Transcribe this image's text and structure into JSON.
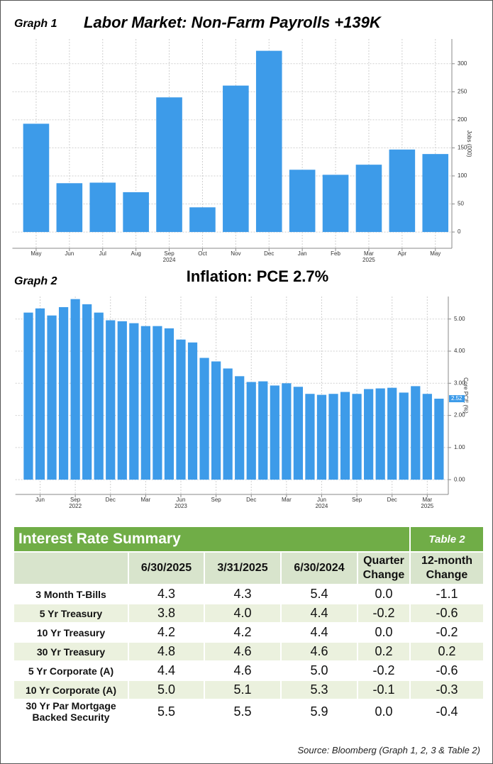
{
  "chart_data": [
    {
      "type": "bar",
      "label": "Graph 1",
      "title": "Labor Market: Non-Farm Payrolls +139K",
      "categories": [
        "May",
        "Jun",
        "Jul",
        "Aug",
        "Sep",
        "Oct",
        "Nov",
        "Dec",
        "Jan",
        "Feb",
        "Mar",
        "Apr",
        "May"
      ],
      "years": [
        null,
        null,
        null,
        null,
        "2024",
        null,
        null,
        null,
        null,
        null,
        "2025",
        null,
        null
      ],
      "values": [
        193,
        87,
        88,
        71,
        240,
        44,
        261,
        323,
        111,
        102,
        120,
        147,
        139
      ],
      "color": "#3d9be9",
      "ylim": [
        -29,
        344
      ],
      "yticks": [
        0,
        50,
        100,
        150,
        200,
        250,
        300
      ],
      "y_axis_label": "Jobs (000)",
      "grid": true
    },
    {
      "type": "bar",
      "label": "Graph 2",
      "title": "Inflation: PCE 2.7%",
      "categories": [
        null,
        "Jun",
        null,
        null,
        "Sep",
        null,
        null,
        "Dec",
        null,
        null,
        "Mar",
        null,
        null,
        "Jun",
        null,
        null,
        "Sep",
        null,
        null,
        "Dec",
        null,
        null,
        "Mar",
        null,
        null,
        "Jun",
        null,
        null,
        "Sep",
        null,
        null,
        "Dec",
        null,
        null,
        "Mar",
        null
      ],
      "years": [
        null,
        null,
        null,
        null,
        "2022",
        null,
        null,
        null,
        null,
        null,
        null,
        null,
        null,
        "2023",
        null,
        null,
        null,
        null,
        null,
        null,
        null,
        null,
        null,
        null,
        null,
        "2024",
        null,
        null,
        null,
        null,
        null,
        null,
        null,
        null,
        "2025",
        null
      ],
      "values": [
        5.2,
        5.33,
        5.11,
        5.37,
        5.62,
        5.46,
        5.2,
        4.96,
        4.93,
        4.87,
        4.78,
        4.78,
        4.71,
        4.36,
        4.27,
        3.79,
        3.68,
        3.46,
        3.22,
        3.04,
        3.06,
        2.93,
        3.0,
        2.89,
        2.67,
        2.64,
        2.67,
        2.73,
        2.67,
        2.82,
        2.84,
        2.86,
        2.71,
        2.91,
        2.67,
        2.52
      ],
      "current_value_label": "2.52",
      "color": "#3d9be9",
      "ylim": [
        -0.46,
        5.7
      ],
      "yticks": [
        {
          "value": 0,
          "label": "0.00"
        },
        {
          "value": 1,
          "label": "1.00"
        },
        {
          "value": 2,
          "label": "2.00"
        },
        {
          "value": 3,
          "label": "3.00"
        },
        {
          "value": 4,
          "label": "4.00"
        },
        {
          "value": 5,
          "label": "5.00"
        }
      ],
      "y_axis_label": "Core PCE (%)",
      "grid": true
    }
  ],
  "table": {
    "title": "Interest Rate Summary",
    "label": "Table 2",
    "header": [
      "6/30/2025",
      "3/31/2025",
      "6/30/2024",
      "Quarter Change",
      "12-month Change"
    ],
    "rows": [
      [
        "3 Month T-Bills",
        "4.3",
        "4.3",
        "5.4",
        "0.0",
        "-1.1"
      ],
      [
        "5 Yr Treasury",
        "3.8",
        "4.0",
        "4.4",
        "-0.2",
        "-0.6"
      ],
      [
        "10 Yr Treasury",
        "4.2",
        "4.2",
        "4.4",
        "0.0",
        "-0.2"
      ],
      [
        "30 Yr Treasury",
        "4.8",
        "4.6",
        "4.6",
        "0.2",
        "0.2"
      ],
      [
        "5 Yr Corporate (A)",
        "4.4",
        "4.6",
        "5.0",
        "-0.2",
        "-0.6"
      ],
      [
        "10 Yr Corporate (A)",
        "5.0",
        "5.1",
        "5.3",
        "-0.1",
        "-0.3"
      ],
      [
        "30 Yr Par Mortgage Backed Security",
        "5.5",
        "5.5",
        "5.9",
        "0.0",
        "-0.4"
      ]
    ],
    "source": "Source: Bloomberg (Graph 1, 2, 3 & Table 2)"
  }
}
